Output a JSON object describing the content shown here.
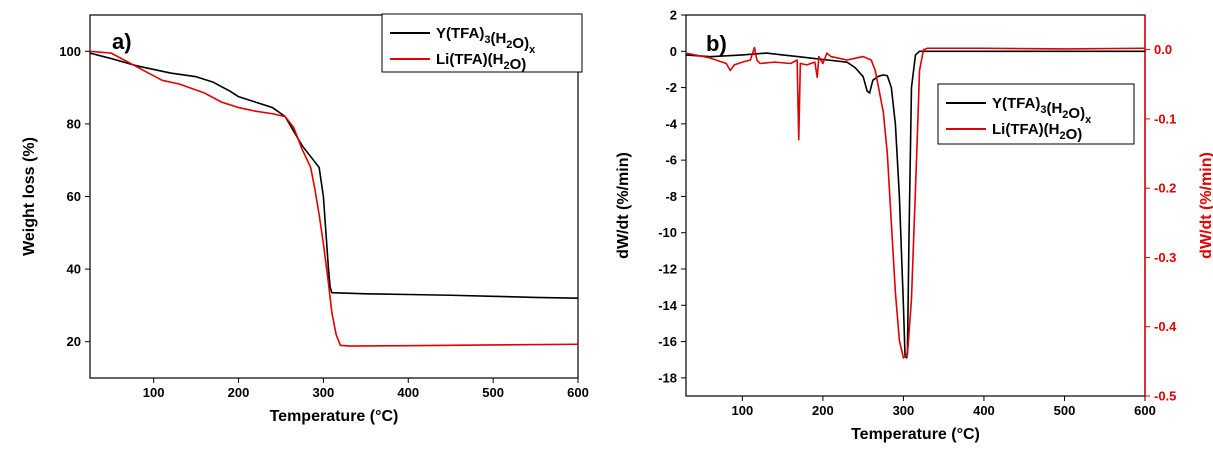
{
  "chart_data": [
    {
      "type": "line",
      "panel_label": "a)",
      "xlabel": "Temperature (°C)",
      "ylabel": "Weight loss (%)",
      "xlim": [
        25,
        600
      ],
      "ylim": [
        10,
        110
      ],
      "xticks": [
        100,
        200,
        300,
        400,
        500,
        600
      ],
      "yticks": [
        20,
        40,
        60,
        80,
        100
      ],
      "legend_position": "top-right",
      "series": [
        {
          "name": "Y(TFA)3(H2O)x",
          "color": "#000000",
          "x": [
            25,
            50,
            80,
            100,
            120,
            150,
            170,
            190,
            200,
            220,
            240,
            255,
            265,
            275,
            285,
            295,
            300,
            303,
            306,
            308,
            310,
            350,
            400,
            450,
            500,
            550,
            600
          ],
          "y": [
            99.5,
            98,
            96,
            95,
            94,
            93,
            91.5,
            89,
            87.5,
            86,
            84.5,
            82,
            78,
            74,
            71,
            68,
            60,
            50,
            40,
            35,
            33.5,
            33.2,
            33,
            32.8,
            32.5,
            32.2,
            32
          ]
        },
        {
          "name": "Li(TFA)(H2O)",
          "color": "#e00000",
          "x": [
            25,
            50,
            70,
            90,
            110,
            130,
            160,
            180,
            200,
            220,
            240,
            255,
            265,
            275,
            285,
            290,
            295,
            300,
            305,
            310,
            315,
            320,
            330,
            400,
            500,
            600
          ],
          "y": [
            100,
            99.5,
            97,
            94.5,
            92,
            91,
            88.5,
            86,
            84.5,
            83.5,
            82.8,
            82,
            79,
            73,
            68,
            62,
            55,
            47,
            38,
            28,
            22,
            19,
            18.8,
            18.9,
            19.1,
            19.3
          ]
        }
      ]
    },
    {
      "type": "line",
      "panel_label": "b)",
      "xlabel": "Temperature (°C)",
      "ylabel": "dW/dt (%/min)",
      "ylabel_right": "dW/dt (%/min)",
      "xlim": [
        30,
        600
      ],
      "ylim": [
        -19,
        2
      ],
      "ylim_right": [
        -0.5,
        0.05
      ],
      "xticks": [
        100,
        200,
        300,
        400,
        500,
        600
      ],
      "yticks": [
        2,
        0,
        -2,
        -4,
        -6,
        -8,
        -10,
        -12,
        -14,
        -16,
        -18
      ],
      "yticks_right": [
        0.0,
        -0.1,
        -0.2,
        -0.3,
        -0.4,
        -0.5
      ],
      "legend_position": "middle-right",
      "series": [
        {
          "name": "Y(TFA)3(H2O)x",
          "color": "#000000",
          "axis": "left",
          "x": [
            30,
            60,
            100,
            130,
            150,
            170,
            190,
            210,
            230,
            240,
            250,
            255,
            258,
            262,
            268,
            275,
            280,
            285,
            290,
            295,
            300,
            302,
            304,
            305,
            307,
            310,
            315,
            320,
            400,
            500,
            600
          ],
          "y": [
            -0.2,
            -0.3,
            -0.2,
            -0.1,
            -0.2,
            -0.3,
            -0.4,
            -0.5,
            -0.6,
            -0.9,
            -1.4,
            -2.2,
            -2.3,
            -1.6,
            -1.4,
            -1.3,
            -1.35,
            -2,
            -4,
            -8,
            -14,
            -16.8,
            -16.9,
            -16.5,
            -10,
            -2,
            -0.2,
            0,
            0,
            0,
            0
          ]
        },
        {
          "name": "Li(TFA)(H2O)",
          "color": "#e00000",
          "axis": "right",
          "x": [
            30,
            60,
            80,
            85,
            90,
            100,
            110,
            115,
            118,
            122,
            140,
            160,
            168,
            170,
            172,
            180,
            190,
            193,
            195,
            200,
            205,
            210,
            230,
            250,
            260,
            265,
            270,
            275,
            280,
            285,
            290,
            295,
            300,
            305,
            310,
            315,
            318,
            320,
            325,
            330,
            400,
            500,
            600
          ],
          "y": [
            -0.005,
            -0.012,
            -0.02,
            -0.03,
            -0.022,
            -0.018,
            -0.015,
            0.003,
            -0.015,
            -0.02,
            -0.018,
            -0.02,
            -0.015,
            -0.13,
            -0.02,
            -0.022,
            -0.018,
            -0.04,
            -0.01,
            -0.02,
            -0.005,
            -0.01,
            -0.015,
            -0.01,
            -0.015,
            -0.03,
            -0.06,
            -0.09,
            -0.15,
            -0.25,
            -0.35,
            -0.42,
            -0.445,
            -0.44,
            -0.36,
            -0.2,
            -0.1,
            -0.03,
            0,
            0.002,
            0.002,
            0.001,
            0.002
          ]
        }
      ]
    }
  ]
}
